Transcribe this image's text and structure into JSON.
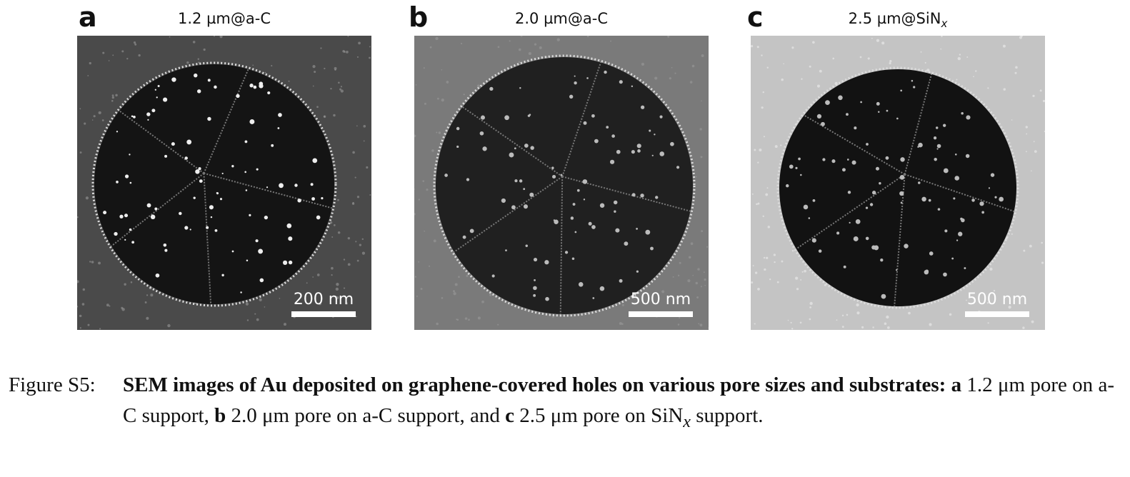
{
  "panels": [
    {
      "letter": "a",
      "title": "1.2 µm@a-C",
      "scale_bar": "200 nm",
      "background": "#4a4a4a",
      "pore": "#141414"
    },
    {
      "letter": "b",
      "title": "2.0 µm@a-C",
      "scale_bar": "500 nm",
      "background": "#7a7a7a",
      "pore": "#202020"
    },
    {
      "letter": "c",
      "title_main": "2.5 µm@SiN",
      "title_sub": "x",
      "scale_bar": "500 nm",
      "background": "#c4c4c4",
      "pore": "#121212"
    }
  ],
  "caption": {
    "label": "Figure S5:",
    "bold_lead": "SEM images of Au deposited on graphene-covered holes on various pore sizes and substrates:",
    "a_letter": "a",
    "a_text": " 1.2 μm pore on a-C support, ",
    "b_letter": "b",
    "b_text": " 2.0 μm pore on a-C support, and ",
    "c_letter": "c",
    "c_text": " 2.5 μm pore on SiN",
    "c_sub": "x",
    "tail": " support."
  }
}
